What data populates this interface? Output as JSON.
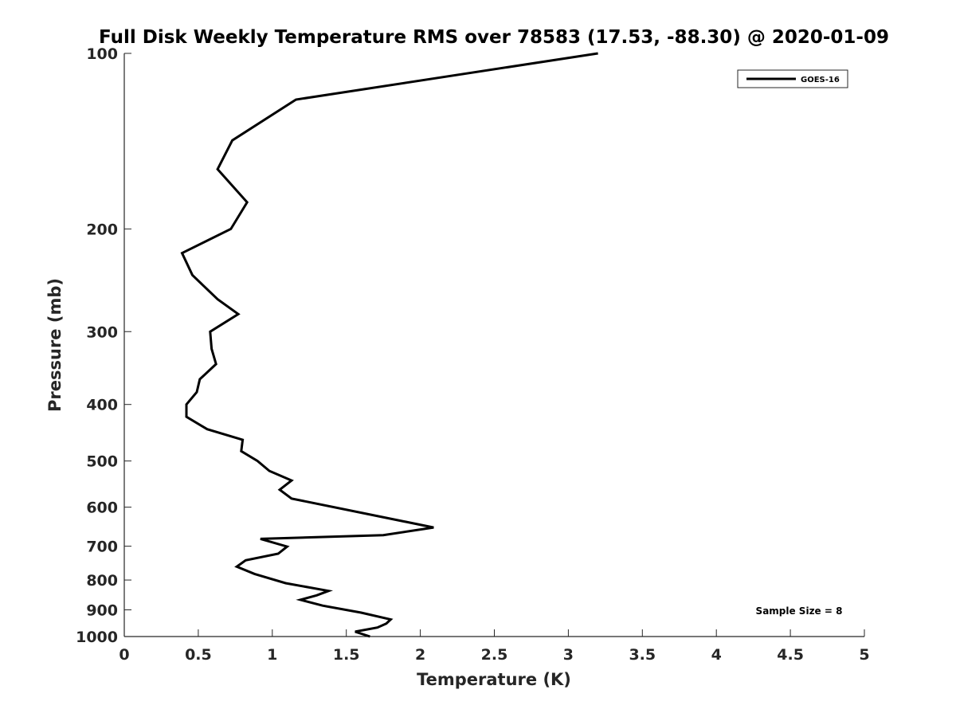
{
  "chart_data": {
    "type": "line",
    "title": "Full Disk Weekly Temperature RMS over 78583 (17.53, -88.30) @ 2020-01-09",
    "xlabel": "Temperature (K)",
    "ylabel": "Pressure (mb)",
    "xlim": [
      0,
      5
    ],
    "ylim": [
      1000,
      100
    ],
    "yscale": "log",
    "x_ticks": [
      0,
      0.5,
      1,
      1.5,
      2,
      2.5,
      3,
      3.5,
      4,
      4.5,
      5
    ],
    "x_tick_labels": [
      "0",
      "0.5",
      "1",
      "1.5",
      "2",
      "2.5",
      "3",
      "3.5",
      "4",
      "4.5",
      "5"
    ],
    "y_ticks": [
      100,
      200,
      300,
      400,
      500,
      600,
      700,
      800,
      900,
      1000
    ],
    "y_tick_labels": [
      "100",
      "200",
      "300",
      "400",
      "500",
      "600",
      "700",
      "800",
      "900",
      "1000"
    ],
    "grid": false,
    "legend_position": "top-right",
    "series": [
      {
        "name": "GOES-16",
        "color": "#000000",
        "points": [
          [
            3.2,
            100
          ],
          [
            1.16,
            120
          ],
          [
            0.73,
            141
          ],
          [
            0.63,
            158
          ],
          [
            0.83,
            180
          ],
          [
            0.72,
            200
          ],
          [
            0.39,
            220
          ],
          [
            0.46,
            240
          ],
          [
            0.63,
            264
          ],
          [
            0.77,
            280
          ],
          [
            0.58,
            300
          ],
          [
            0.59,
            321
          ],
          [
            0.62,
            341
          ],
          [
            0.51,
            362
          ],
          [
            0.49,
            381
          ],
          [
            0.42,
            400
          ],
          [
            0.42,
            420
          ],
          [
            0.56,
            441
          ],
          [
            0.8,
            460
          ],
          [
            0.79,
            481
          ],
          [
            0.9,
            500
          ],
          [
            0.98,
            520
          ],
          [
            1.13,
            540
          ],
          [
            1.05,
            560
          ],
          [
            1.13,
            580
          ],
          [
            2.09,
            650
          ],
          [
            1.75,
            670
          ],
          [
            0.92,
            680
          ],
          [
            1.1,
            701
          ],
          [
            1.04,
            721
          ],
          [
            0.82,
            740
          ],
          [
            0.76,
            759
          ],
          [
            0.88,
            781
          ],
          [
            1.09,
            810
          ],
          [
            1.38,
            835
          ],
          [
            1.3,
            850
          ],
          [
            1.19,
            865
          ],
          [
            1.34,
            885
          ],
          [
            1.6,
            910
          ],
          [
            1.8,
            935
          ],
          [
            1.77,
            950
          ],
          [
            1.71,
            965
          ],
          [
            1.56,
            981
          ],
          [
            1.66,
            1000
          ]
        ]
      }
    ],
    "annotation": "Sample Size = 8"
  }
}
